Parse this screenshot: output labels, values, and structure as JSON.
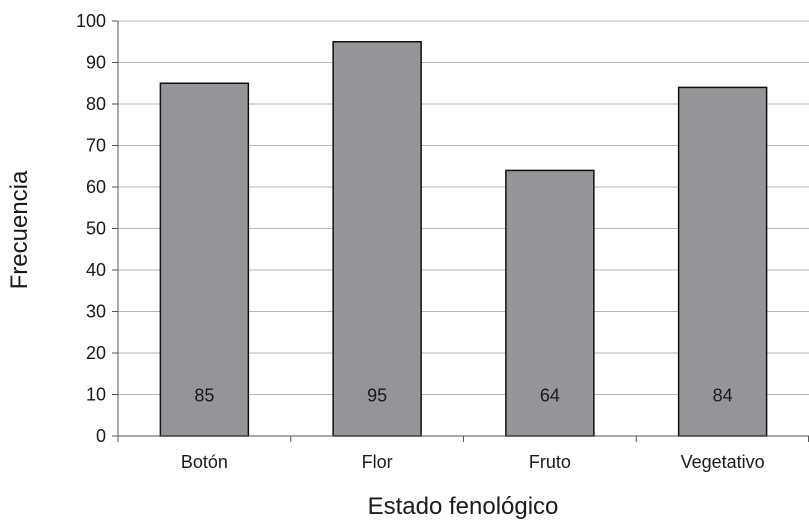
{
  "chart_data": {
    "type": "bar",
    "xlabel": "Estado fenológico",
    "ylabel": "Frecuencia",
    "categories": [
      "Botón",
      "Flor",
      "Fruto",
      "Vegetativo"
    ],
    "values": [
      85,
      95,
      64,
      84
    ],
    "data_labels": [
      "85",
      "95",
      "64",
      "84"
    ],
    "ylim": [
      0,
      100
    ],
    "yticks": [
      "0",
      "10",
      "20",
      "30",
      "40",
      "50",
      "60",
      "70",
      "80",
      "90",
      "100"
    ],
    "grid": true,
    "legend": "none",
    "colors": {
      "bar_fill": "#939598",
      "bar_stroke": "#111111",
      "grid": "#b5b5b5",
      "axis": "#555555"
    }
  }
}
